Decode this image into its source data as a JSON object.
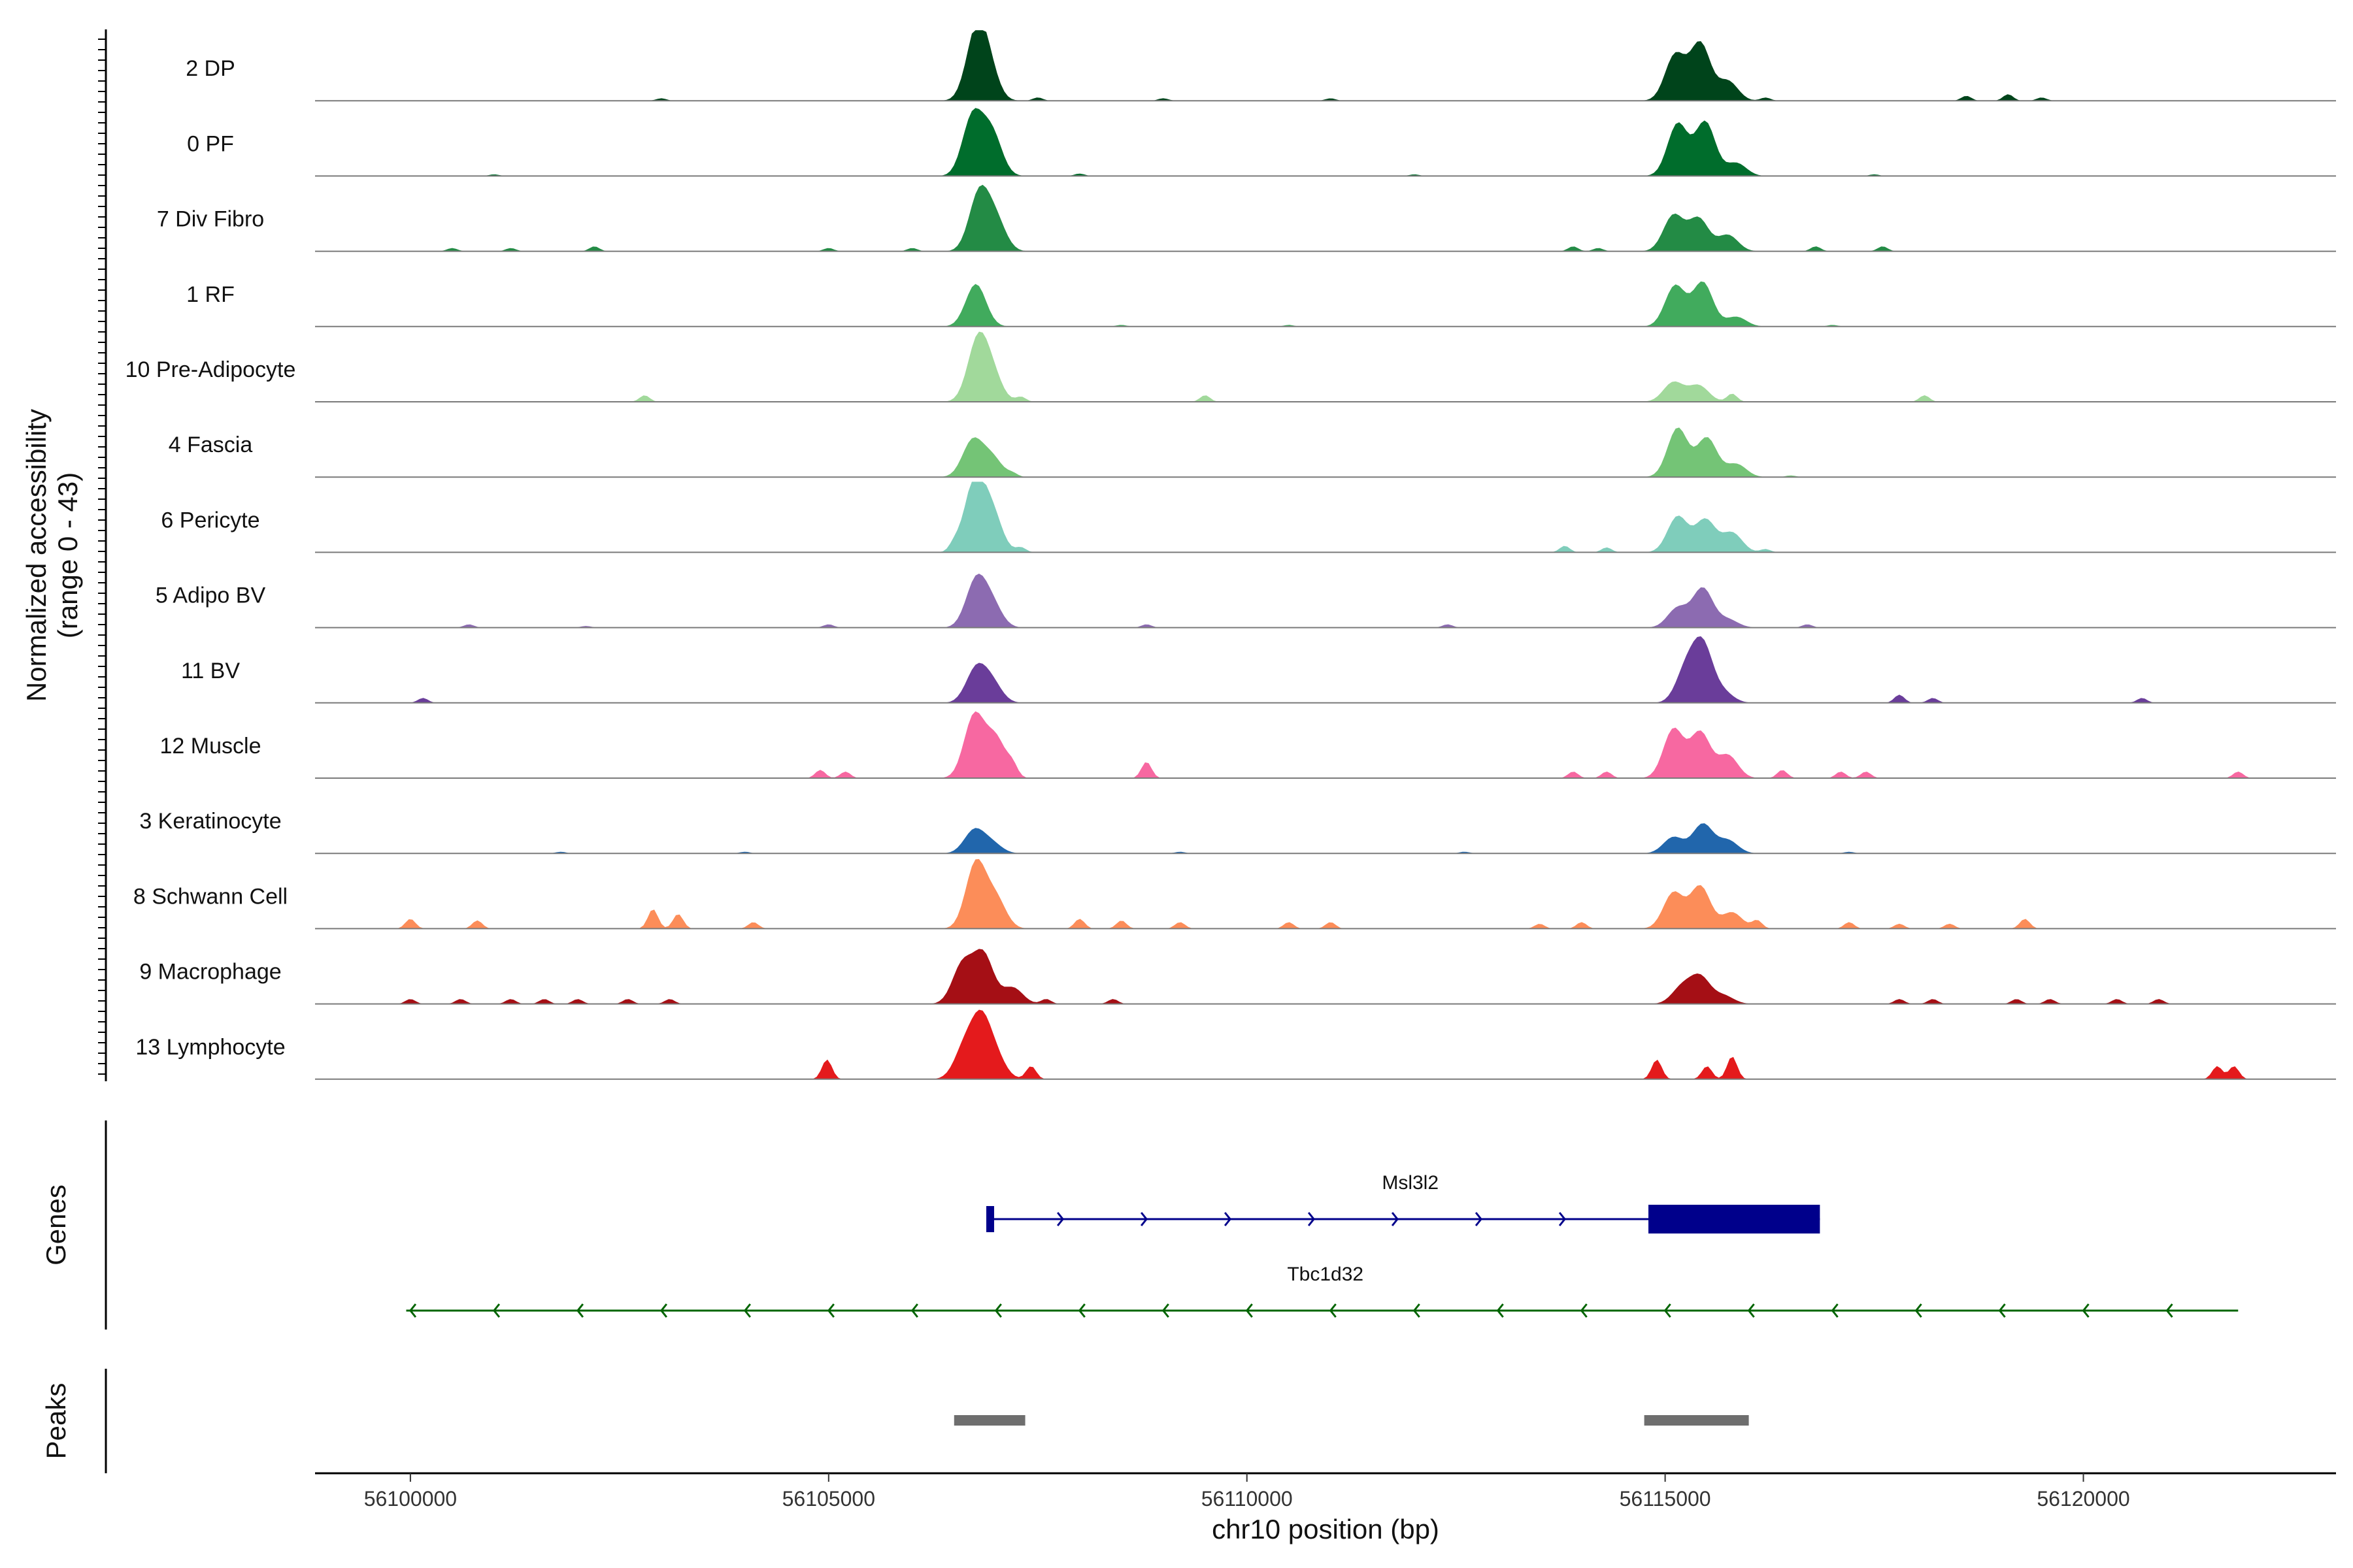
{
  "chart_data": {
    "type": "area",
    "chromosome": "chr10",
    "xlabel": "chr10 position (bp)",
    "ylabel": "Normalized accessibility",
    "ylabel_sub": "(range 0 - 43)",
    "ylim": [
      0,
      43
    ],
    "xlim": [
      56098860,
      56123020
    ],
    "x_ticks": [
      56100000,
      56105000,
      56110000,
      56115000,
      56120000
    ],
    "x_tick_labels": [
      "56100000",
      "56105000",
      "56110000",
      "56115000",
      "56120000"
    ],
    "tracks": [
      {
        "name": "2 DP",
        "color": "#00441b",
        "peaks": [
          [
            56106760,
            38
          ],
          [
            56106900,
            20
          ],
          [
            56115120,
            28
          ],
          [
            56115420,
            35
          ],
          [
            56115750,
            12
          ]
        ],
        "spikes": [
          [
            56103000,
            1.5
          ],
          [
            56107500,
            2
          ],
          [
            56109000,
            1.5
          ],
          [
            56111000,
            1.5
          ],
          [
            56116200,
            2
          ],
          [
            56118600,
            3
          ],
          [
            56119100,
            4
          ],
          [
            56119500,
            2
          ]
        ]
      },
      {
        "name": "0 PF",
        "color": "#006d2c",
        "peaks": [
          [
            56106720,
            36
          ],
          [
            56106950,
            26
          ],
          [
            56115150,
            32
          ],
          [
            56115480,
            33
          ],
          [
            56115850,
            8
          ]
        ],
        "spikes": [
          [
            56101000,
            1
          ],
          [
            56108000,
            1.5
          ],
          [
            56112000,
            1
          ],
          [
            56117500,
            1
          ]
        ]
      },
      {
        "name": "7 Div Fibro",
        "color": "#238b45",
        "peaks": [
          [
            56106800,
            35
          ],
          [
            56107000,
            18
          ],
          [
            56115100,
            22
          ],
          [
            56115400,
            20
          ],
          [
            56115750,
            10
          ]
        ],
        "spikes": [
          [
            56100500,
            2
          ],
          [
            56101200,
            2
          ],
          [
            56102200,
            3
          ],
          [
            56105000,
            2
          ],
          [
            56106000,
            2
          ],
          [
            56113900,
            3
          ],
          [
            56114200,
            2
          ],
          [
            56116800,
            3
          ],
          [
            56117600,
            3
          ]
        ]
      },
      {
        "name": "1 RF",
        "color": "#41ab5d",
        "peaks": [
          [
            56106760,
            26
          ],
          [
            56115120,
            25
          ],
          [
            56115450,
            27
          ],
          [
            56115850,
            6
          ]
        ],
        "spikes": [
          [
            56108500,
            1
          ],
          [
            56110500,
            1
          ],
          [
            56117000,
            1
          ]
        ]
      },
      {
        "name": "10 Pre-Adipocyte",
        "color": "#a1d99b",
        "peaks": [
          [
            56106780,
            36
          ],
          [
            56106950,
            16
          ],
          [
            56115100,
            12
          ],
          [
            56115400,
            10
          ]
        ],
        "spikes": [
          [
            56102800,
            4
          ],
          [
            56107300,
            3
          ],
          [
            56109500,
            4
          ],
          [
            56115800,
            5
          ],
          [
            56118100,
            4
          ]
        ]
      },
      {
        "name": "4 Fascia",
        "color": "#74c476",
        "peaks": [
          [
            56106720,
            22
          ],
          [
            56106950,
            12
          ],
          [
            56115150,
            30
          ],
          [
            56115500,
            24
          ],
          [
            56115850,
            8
          ]
        ],
        "spikes": [
          [
            56107200,
            2
          ],
          [
            56116500,
            1
          ]
        ]
      },
      {
        "name": "6 Pericyte",
        "color": "#7fcdbb",
        "peaks": [
          [
            56106740,
            42
          ],
          [
            56106950,
            24
          ],
          [
            56115150,
            22
          ],
          [
            56115480,
            20
          ],
          [
            56115800,
            12
          ]
        ],
        "spikes": [
          [
            56106500,
            4
          ],
          [
            56107300,
            3
          ],
          [
            56113800,
            4
          ],
          [
            56114300,
            3
          ],
          [
            56116200,
            2
          ]
        ]
      },
      {
        "name": "5 Adipo BV",
        "color": "#8c6bb1",
        "peaks": [
          [
            56106760,
            28
          ],
          [
            56106950,
            14
          ],
          [
            56115150,
            12
          ],
          [
            56115450,
            24
          ],
          [
            56115750,
            5
          ]
        ],
        "spikes": [
          [
            56100700,
            2
          ],
          [
            56102100,
            1
          ],
          [
            56105000,
            2
          ],
          [
            56108800,
            2
          ],
          [
            56112400,
            2
          ],
          [
            56116700,
            2
          ]
        ]
      },
      {
        "name": "11 BV",
        "color": "#6a3d9a",
        "peaks": [
          [
            56106760,
            20
          ],
          [
            56106950,
            12
          ],
          [
            56115250,
            20
          ],
          [
            56115450,
            34
          ],
          [
            56115700,
            6
          ]
        ],
        "spikes": [
          [
            56100150,
            3
          ],
          [
            56117800,
            5
          ],
          [
            56118200,
            3
          ],
          [
            56120700,
            3
          ]
        ]
      },
      {
        "name": "12 Muscle",
        "color": "#f768a1",
        "peaks": [
          [
            56106740,
            38
          ],
          [
            56107000,
            24
          ],
          [
            56115100,
            30
          ],
          [
            56115420,
            28
          ],
          [
            56115750,
            14
          ]
        ],
        "spikes": [
          [
            56104900,
            5
          ],
          [
            56105200,
            4
          ],
          [
            56107200,
            6
          ],
          [
            56108800,
            10
          ],
          [
            56113900,
            4
          ],
          [
            56114300,
            4
          ],
          [
            56116400,
            5
          ],
          [
            56117100,
            4
          ],
          [
            56117400,
            4
          ],
          [
            56121850,
            4
          ]
        ]
      },
      {
        "name": "3 Keratinocyte",
        "color": "#2166ac",
        "peaks": [
          [
            56106740,
            14
          ],
          [
            56106950,
            6
          ],
          [
            56115100,
            10
          ],
          [
            56115450,
            18
          ],
          [
            56115750,
            8
          ]
        ],
        "spikes": [
          [
            56101800,
            1
          ],
          [
            56104000,
            1
          ],
          [
            56109200,
            1
          ],
          [
            56112600,
            1
          ],
          [
            56117200,
            1
          ]
        ]
      },
      {
        "name": "8 Schwann Cell",
        "color": "#fc8d59",
        "peaks": [
          [
            56106760,
            40
          ],
          [
            56107000,
            18
          ],
          [
            56115100,
            22
          ],
          [
            56115420,
            26
          ],
          [
            56115800,
            10
          ]
        ],
        "spikes": [
          [
            56100000,
            6
          ],
          [
            56100800,
            5
          ],
          [
            56102900,
            12
          ],
          [
            56103200,
            9
          ],
          [
            56104100,
            4
          ],
          [
            56108000,
            6
          ],
          [
            56108500,
            5
          ],
          [
            56109200,
            4
          ],
          [
            56110500,
            4
          ],
          [
            56111000,
            4
          ],
          [
            56113500,
            3
          ],
          [
            56114000,
            4
          ],
          [
            56116100,
            5
          ],
          [
            56117200,
            4
          ],
          [
            56117800,
            3
          ],
          [
            56118400,
            3
          ],
          [
            56119300,
            6
          ]
        ]
      },
      {
        "name": "9 Macrophage",
        "color": "#a50f15",
        "peaks": [
          [
            56106600,
            24
          ],
          [
            56106850,
            30
          ],
          [
            56107200,
            10
          ],
          [
            56115200,
            10
          ],
          [
            56115420,
            16
          ],
          [
            56115700,
            5
          ]
        ],
        "spikes": [
          [
            56100000,
            3
          ],
          [
            56100600,
            3
          ],
          [
            56101200,
            3
          ],
          [
            56101600,
            3
          ],
          [
            56102000,
            3
          ],
          [
            56102600,
            3
          ],
          [
            56103100,
            3
          ],
          [
            56107600,
            3
          ],
          [
            56108400,
            3
          ],
          [
            56117800,
            3
          ],
          [
            56118200,
            3
          ],
          [
            56119200,
            3
          ],
          [
            56119600,
            3
          ],
          [
            56120400,
            3
          ],
          [
            56120900,
            3
          ]
        ]
      },
      {
        "name": "13 Lymphocyte",
        "color": "#e41a1c",
        "peaks": [
          [
            56106620,
            18
          ],
          [
            56106820,
            34
          ],
          [
            56107000,
            12
          ]
        ],
        "spikes": [
          [
            56104980,
            12
          ],
          [
            56107420,
            8
          ],
          [
            56114900,
            12
          ],
          [
            56115500,
            8
          ],
          [
            56115800,
            14
          ],
          [
            56121600,
            8
          ],
          [
            56121800,
            8
          ]
        ]
      }
    ],
    "genes": [
      {
        "name": "Msl3l2",
        "strand": "+",
        "start": 56106900,
        "end": 56116850,
        "color": "#00008b",
        "thick_start": 56114800,
        "thick_end": 56116850
      },
      {
        "name": "Tbc1d32",
        "strand": "-",
        "start": 56099950,
        "end": 56121850,
        "color": "#006400"
      }
    ],
    "peaks_track": [
      [
        56106500,
        56107350
      ],
      [
        56114750,
        56116000
      ]
    ],
    "panel_titles": {
      "genes": "Genes",
      "peaks": "Peaks"
    }
  }
}
